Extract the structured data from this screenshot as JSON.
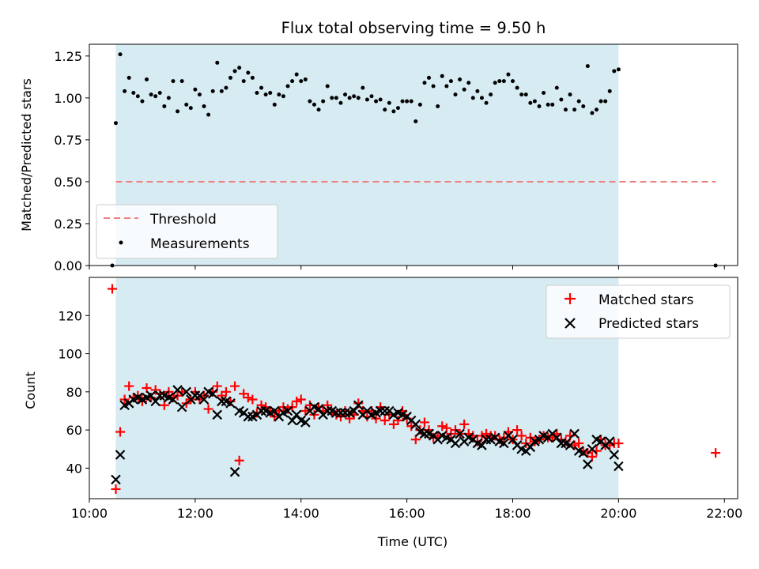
{
  "chart_data": [
    {
      "type": "scatter",
      "title": "Flux total observing time = 9.50 h",
      "xlabel": "",
      "ylabel": "Matched/Predicted stars",
      "xlim": [
        "10:00",
        "22:15"
      ],
      "ylim": [
        0,
        1.32
      ],
      "y_ticks": [
        0.0,
        0.25,
        0.5,
        0.75,
        1.0,
        1.25
      ],
      "y_tick_labels": [
        "0.00",
        "0.25",
        "0.50",
        "0.75",
        "1.00",
        "1.25"
      ],
      "observing_window": [
        "10:30",
        "20:00"
      ],
      "legend": {
        "position": "lower-left",
        "entries": [
          "Threshold",
          "Measurements"
        ]
      },
      "threshold": {
        "name": "Threshold",
        "y": 0.5,
        "x_range": [
          "10:30",
          "21:50"
        ],
        "color": "#f08080"
      },
      "series": [
        {
          "name": "Measurements",
          "color": "#000000",
          "x": [
            "10:26",
            "10:30",
            "10:35",
            "10:40",
            "10:45",
            "10:50",
            "10:55",
            "11:00",
            "11:05",
            "11:10",
            "11:15",
            "11:20",
            "11:25",
            "11:30",
            "11:35",
            "11:40",
            "11:45",
            "11:50",
            "11:55",
            "12:00",
            "12:05",
            "12:10",
            "12:15",
            "12:20",
            "12:25",
            "12:30",
            "12:35",
            "12:40",
            "12:45",
            "12:50",
            "12:55",
            "13:00",
            "13:05",
            "13:10",
            "13:15",
            "13:20",
            "13:25",
            "13:30",
            "13:35",
            "13:40",
            "13:45",
            "13:50",
            "13:55",
            "14:00",
            "14:05",
            "14:10",
            "14:15",
            "14:20",
            "14:25",
            "14:30",
            "14:35",
            "14:40",
            "14:45",
            "14:50",
            "14:55",
            "15:00",
            "15:05",
            "15:10",
            "15:15",
            "15:20",
            "15:25",
            "15:30",
            "15:35",
            "15:40",
            "15:45",
            "15:50",
            "15:55",
            "16:00",
            "16:05",
            "16:10",
            "16:15",
            "16:20",
            "16:25",
            "16:30",
            "16:35",
            "16:40",
            "16:45",
            "16:50",
            "16:55",
            "17:00",
            "17:05",
            "17:10",
            "17:15",
            "17:20",
            "17:25",
            "17:30",
            "17:35",
            "17:40",
            "17:45",
            "17:50",
            "17:55",
            "18:00",
            "18:05",
            "18:10",
            "18:15",
            "18:20",
            "18:25",
            "18:30",
            "18:35",
            "18:40",
            "18:45",
            "18:50",
            "18:55",
            "19:00",
            "19:05",
            "19:10",
            "19:15",
            "19:20",
            "19:25",
            "19:30",
            "19:35",
            "19:40",
            "19:45",
            "19:50",
            "19:55",
            "20:00",
            "21:50"
          ],
          "y": [
            0.0,
            0.85,
            1.26,
            1.04,
            1.12,
            1.03,
            1.01,
            0.98,
            1.11,
            1.02,
            1.01,
            1.03,
            0.95,
            1.0,
            1.1,
            0.92,
            1.1,
            0.96,
            0.94,
            1.05,
            1.02,
            0.95,
            0.9,
            1.04,
            1.21,
            1.04,
            1.06,
            1.12,
            1.16,
            1.18,
            1.1,
            1.15,
            1.12,
            1.03,
            1.06,
            1.02,
            1.03,
            0.96,
            1.02,
            1.01,
            1.07,
            1.1,
            1.14,
            1.1,
            1.11,
            0.98,
            0.96,
            0.93,
            0.98,
            1.07,
            1.0,
            1.0,
            0.97,
            1.02,
            1.0,
            1.01,
            1.0,
            1.06,
            0.99,
            1.01,
            0.98,
            0.99,
            0.93,
            0.97,
            0.92,
            0.94,
            0.98,
            0.98,
            0.98,
            0.86,
            0.96,
            1.09,
            1.12,
            1.07,
            0.95,
            1.13,
            1.07,
            1.1,
            1.02,
            1.11,
            1.05,
            1.09,
            1.0,
            1.04,
            1.0,
            0.97,
            1.02,
            1.09,
            1.1,
            1.1,
            1.14,
            1.1,
            1.06,
            1.02,
            1.02,
            0.97,
            0.98,
            0.95,
            1.03,
            0.96,
            0.96,
            1.06,
            0.99,
            0.93,
            1.02,
            0.93,
            0.98,
            0.95,
            1.19,
            0.91,
            0.93,
            0.98,
            0.98,
            1.04,
            1.16,
            1.17,
            0.0
          ]
        }
      ]
    },
    {
      "type": "scatter",
      "xlabel": "Time (UTC)",
      "ylabel": "Count",
      "xlim": [
        "10:00",
        "22:15"
      ],
      "ylim": [
        24,
        140
      ],
      "y_ticks": [
        40,
        60,
        80,
        100,
        120
      ],
      "x_ticks": [
        "10:00",
        "12:00",
        "14:00",
        "16:00",
        "18:00",
        "20:00",
        "22:00"
      ],
      "observing_window": [
        "10:30",
        "20:00"
      ],
      "legend": {
        "position": "upper-right",
        "entries": [
          "Matched stars",
          "Predicted stars"
        ]
      },
      "series": [
        {
          "name": "Matched stars",
          "marker": "plus",
          "color": "#ff0000",
          "x": [
            "10:26",
            "10:30",
            "10:35",
            "10:40",
            "10:45",
            "10:50",
            "10:55",
            "11:00",
            "11:05",
            "11:10",
            "11:15",
            "11:20",
            "11:25",
            "11:30",
            "11:35",
            "11:40",
            "11:45",
            "11:50",
            "11:55",
            "12:00",
            "12:05",
            "12:10",
            "12:15",
            "12:20",
            "12:25",
            "12:30",
            "12:35",
            "12:40",
            "12:45",
            "12:50",
            "12:55",
            "13:00",
            "13:05",
            "13:10",
            "13:15",
            "13:20",
            "13:25",
            "13:30",
            "13:35",
            "13:40",
            "13:45",
            "13:50",
            "13:55",
            "14:00",
            "14:05",
            "14:10",
            "14:15",
            "14:20",
            "14:25",
            "14:30",
            "14:35",
            "14:40",
            "14:45",
            "14:50",
            "14:55",
            "15:00",
            "15:05",
            "15:10",
            "15:15",
            "15:20",
            "15:25",
            "15:30",
            "15:35",
            "15:40",
            "15:45",
            "15:50",
            "15:55",
            "16:00",
            "16:05",
            "16:10",
            "16:15",
            "16:20",
            "16:25",
            "16:30",
            "16:35",
            "16:40",
            "16:45",
            "16:50",
            "16:55",
            "17:00",
            "17:05",
            "17:10",
            "17:15",
            "17:20",
            "17:25",
            "17:30",
            "17:35",
            "17:40",
            "17:45",
            "17:50",
            "17:55",
            "18:00",
            "18:05",
            "18:10",
            "18:15",
            "18:20",
            "18:25",
            "18:30",
            "18:35",
            "18:40",
            "18:45",
            "18:50",
            "18:55",
            "19:00",
            "19:05",
            "19:10",
            "19:15",
            "19:20",
            "19:25",
            "19:30",
            "19:35",
            "19:40",
            "19:45",
            "19:50",
            "19:55",
            "20:00",
            "21:50"
          ],
          "y": [
            134,
            29,
            59,
            76,
            83,
            77,
            78,
            75,
            82,
            77,
            81,
            79,
            73,
            80,
            77,
            78,
            80,
            74,
            76,
            80,
            76,
            78,
            71,
            80,
            83,
            78,
            80,
            75,
            83,
            44,
            79,
            77,
            76,
            69,
            73,
            72,
            70,
            67,
            70,
            72,
            71,
            72,
            75,
            76,
            70,
            73,
            68,
            72,
            70,
            73,
            69,
            68,
            67,
            70,
            66,
            68,
            74,
            70,
            67,
            70,
            66,
            72,
            65,
            68,
            63,
            65,
            70,
            66,
            62,
            55,
            60,
            64,
            60,
            56,
            57,
            62,
            61,
            58,
            60,
            58,
            63,
            58,
            57,
            54,
            57,
            58,
            57,
            57,
            55,
            56,
            59,
            55,
            60,
            57,
            53,
            56,
            54,
            55,
            57,
            56,
            56,
            58,
            55,
            54,
            57,
            52,
            53,
            49,
            48,
            46,
            49,
            55,
            52,
            52,
            53,
            53,
            48
          ]
        },
        {
          "name": "Predicted stars",
          "marker": "x",
          "color": "#000000",
          "x": [
            "10:30",
            "10:35",
            "10:40",
            "10:45",
            "10:50",
            "10:55",
            "11:00",
            "11:05",
            "11:10",
            "11:15",
            "11:20",
            "11:25",
            "11:30",
            "11:35",
            "11:40",
            "11:45",
            "11:50",
            "11:55",
            "12:00",
            "12:05",
            "12:10",
            "12:15",
            "12:20",
            "12:25",
            "12:30",
            "12:35",
            "12:40",
            "12:45",
            "12:50",
            "12:55",
            "13:00",
            "13:05",
            "13:10",
            "13:15",
            "13:20",
            "13:25",
            "13:30",
            "13:35",
            "13:40",
            "13:45",
            "13:50",
            "13:55",
            "14:00",
            "14:05",
            "14:10",
            "14:15",
            "14:20",
            "14:25",
            "14:30",
            "14:35",
            "14:40",
            "14:45",
            "14:50",
            "14:55",
            "15:00",
            "15:05",
            "15:10",
            "15:15",
            "15:20",
            "15:25",
            "15:30",
            "15:35",
            "15:40",
            "15:45",
            "15:50",
            "15:55",
            "16:00",
            "16:05",
            "16:10",
            "16:15",
            "16:20",
            "16:25",
            "16:30",
            "16:35",
            "16:40",
            "16:45",
            "16:50",
            "16:55",
            "17:00",
            "17:05",
            "17:10",
            "17:15",
            "17:20",
            "17:25",
            "17:30",
            "17:35",
            "17:40",
            "17:45",
            "17:50",
            "17:55",
            "18:00",
            "18:05",
            "18:10",
            "18:15",
            "18:20",
            "18:25",
            "18:30",
            "18:35",
            "18:40",
            "18:45",
            "18:50",
            "18:55",
            "19:00",
            "19:05",
            "19:10",
            "19:15",
            "19:20",
            "19:25",
            "19:30",
            "19:35",
            "19:40",
            "19:45",
            "19:50",
            "19:55",
            "20:00"
          ],
          "y": [
            34,
            47,
            73,
            74,
            76,
            77,
            76,
            77,
            78,
            75,
            78,
            78,
            77,
            76,
            81,
            72,
            80,
            76,
            78,
            78,
            76,
            80,
            79,
            68,
            75,
            75,
            74,
            38,
            70,
            69,
            67,
            67,
            68,
            70,
            70,
            69,
            70,
            67,
            69,
            70,
            65,
            68,
            65,
            64,
            70,
            72,
            71,
            68,
            70,
            70,
            69,
            69,
            69,
            69,
            70,
            73,
            68,
            70,
            68,
            69,
            70,
            70,
            70,
            68,
            69,
            68,
            67,
            65,
            63,
            59,
            58,
            58,
            57,
            55,
            57,
            56,
            55,
            53,
            58,
            54,
            56,
            55,
            53,
            52,
            55,
            55,
            56,
            54,
            53,
            57,
            55,
            52,
            50,
            49,
            51,
            54,
            55,
            57,
            56,
            58,
            56,
            53,
            53,
            52,
            58,
            49,
            48,
            42,
            50,
            55,
            54,
            52,
            54,
            47,
            41
          ]
        }
      ]
    }
  ]
}
